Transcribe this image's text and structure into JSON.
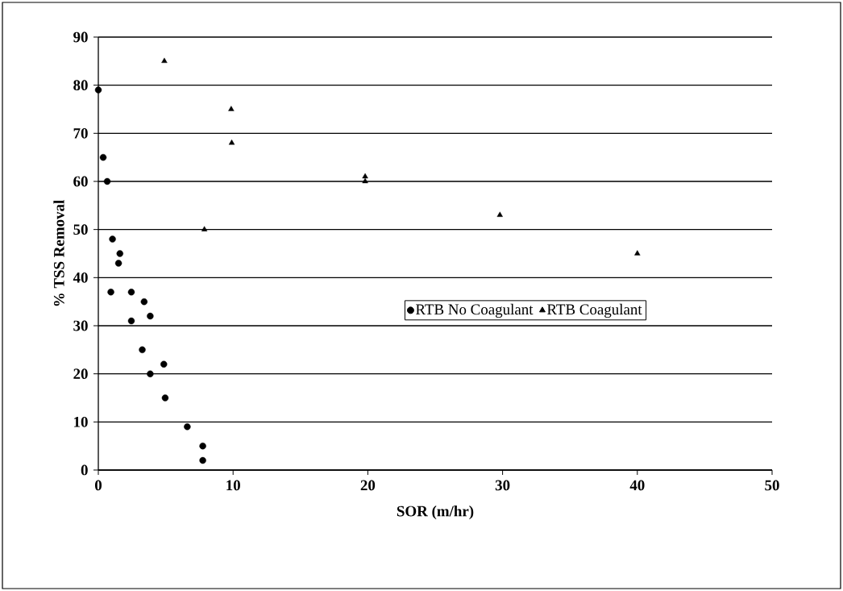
{
  "chart_data": {
    "type": "scatter",
    "xlabel": "SOR (m/hr)",
    "ylabel": "% TSS Removal",
    "xlim": [
      0,
      50
    ],
    "xticks": [
      0,
      10,
      20,
      30,
      40,
      50
    ],
    "ylim": [
      0,
      90
    ],
    "yticks": [
      0,
      10,
      20,
      30,
      40,
      50,
      60,
      70,
      80,
      90
    ],
    "grid": "y",
    "legend": "right",
    "series": [
      {
        "name": "RTB No Coagulant",
        "color": "#000000",
        "marker": "circle",
        "x": [
          0,
          0.36,
          0.66,
          1.05,
          1.6,
          1.5,
          0.93,
          2.45,
          3.4,
          3.85,
          2.45,
          3.26,
          4.86,
          3.85,
          4.96,
          6.6,
          7.75,
          7.75
        ],
        "values": [
          79,
          65,
          60,
          48,
          45,
          43,
          37,
          37,
          35,
          32,
          31,
          25,
          22,
          20,
          15,
          9,
          5,
          2
        ]
      },
      {
        "name": "RTB Coagulant",
        "color": "#000000",
        "marker": "triangle",
        "x": [
          4.9,
          9.86,
          9.9,
          19.8,
          19.8,
          7.87,
          29.8,
          40
        ],
        "values": [
          85,
          75,
          68,
          61,
          60,
          50,
          53,
          45
        ]
      }
    ]
  }
}
